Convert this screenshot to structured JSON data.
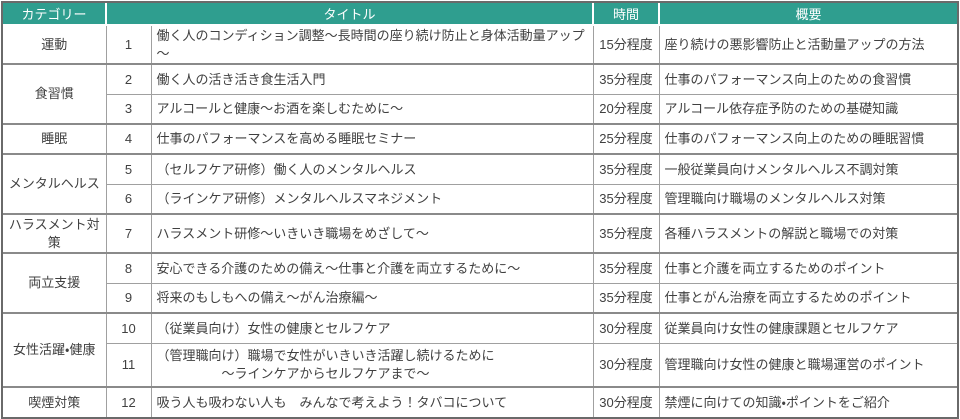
{
  "colors": {
    "header_bg": "#2f9e8f",
    "header_text": "#ffffff",
    "body_text": "#404040",
    "outer_border": "#6a6a6a",
    "group_border": "#8a8a8a",
    "inner_border": "#a0a0a0"
  },
  "header": {
    "category": "カテゴリー",
    "title": "タイトル",
    "time": "時間",
    "summary": "概要"
  },
  "rows": [
    {
      "category": "運動",
      "category_span": 1,
      "num": "1",
      "title": "働く人のコンディション調整～長時間の座り続け防止と身体活動量アップ～",
      "time": "15分程度",
      "summary": "座り続けの悪影響防止と活動量アップの方法"
    },
    {
      "category": "食習慣",
      "category_span": 2,
      "num": "2",
      "title": "働く人の活き活き食生活入門",
      "time": "35分程度",
      "summary": "仕事のパフォーマンス向上のための食習慣"
    },
    {
      "num": "3",
      "title": "アルコールと健康～お酒を楽しむために～",
      "time": "20分程度",
      "summary": "アルコール依存症予防のための基礎知識"
    },
    {
      "category": "睡眠",
      "category_span": 1,
      "num": "4",
      "title": "仕事のパフォーマンスを高める睡眠セミナー",
      "time": "25分程度",
      "summary": "仕事のパフォーマンス向上のための睡眠習慣"
    },
    {
      "category": "メンタルヘルス",
      "category_span": 2,
      "num": "5",
      "title": "（セルフケア研修）働く人のメンタルヘルス",
      "time": "35分程度",
      "summary": "一般従業員向けメンタルヘルス不調対策"
    },
    {
      "num": "6",
      "title": "（ラインケア研修）メンタルヘルスマネジメント",
      "time": "35分程度",
      "summary": "管理職向け職場のメンタルヘルス対策"
    },
    {
      "category": "ハラスメント対策",
      "category_span": 1,
      "num": "7",
      "title": "ハラスメント研修～いきいき職場をめざして～",
      "time": "35分程度",
      "summary": "各種ハラスメントの解説と職場での対策"
    },
    {
      "category": "両立支援",
      "category_span": 2,
      "num": "8",
      "title": "安心できる介護のための備え～仕事と介護を両立するために～",
      "time": "35分程度",
      "summary": "仕事と介護を両立するためのポイント"
    },
    {
      "num": "9",
      "title": "将来のもしもへの備え～がん治療編～",
      "time": "35分程度",
      "summary": "仕事とがん治療を両立するためのポイント"
    },
    {
      "category": "女性活躍・健康",
      "category_span": 2,
      "num": "10",
      "title": "（従業員向け）女性の健康とセルフケア",
      "time": "30分程度",
      "summary": "従業員向け女性の健康課題とセルフケア"
    },
    {
      "num": "11",
      "tall": true,
      "title": "（管理職向け）職場で女性がいきいき活躍し続けるために\n　　　　　～ラインケアからセルフケアまで～",
      "time": "30分程度",
      "summary": "管理職向け女性の健康と職場運営のポイント"
    },
    {
      "category": "喫煙対策",
      "category_span": 1,
      "num": "12",
      "title": "吸う人も吸わない人も　みんなで考えよう！タバコについて",
      "time": "30分程度",
      "summary": "禁煙に向けての知識・ポイントをご紹介"
    }
  ]
}
